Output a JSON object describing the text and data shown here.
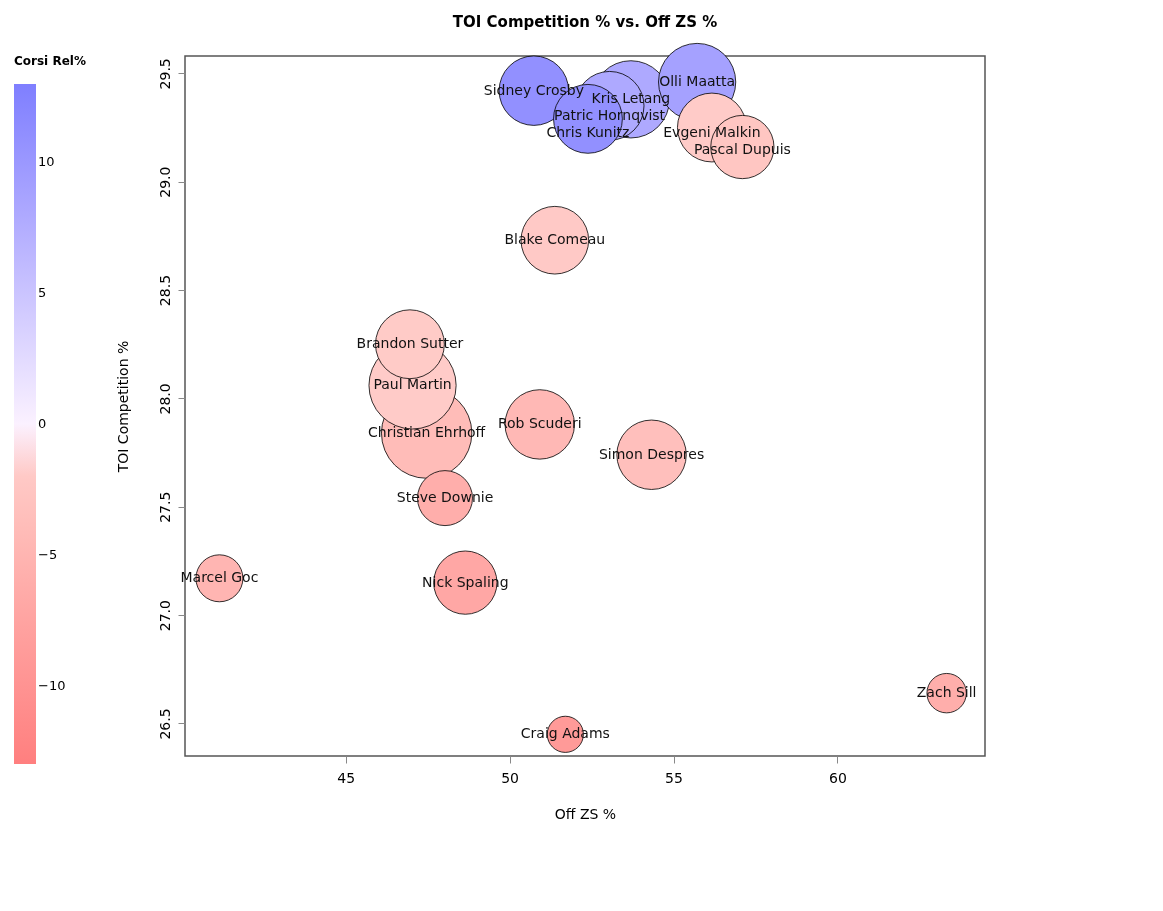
{
  "chart_data": {
    "type": "bubble",
    "title": "TOI Competition % vs. Off ZS %",
    "xlabel": "Off ZS %",
    "ylabel": "TOI Competition %",
    "clabel": "Corsi Rel%",
    "xlim": [
      40.1,
      64.5
    ],
    "xticks": [
      45,
      50,
      55,
      60
    ],
    "ylim": [
      26.35,
      29.58
    ],
    "yticks": [
      26.5,
      {
        "value": 27,
        "label": "27.0"
      },
      27.5,
      {
        "value": 28,
        "label": "28.0"
      },
      28.5,
      {
        "value": 29,
        "label": "29.0"
      },
      29.5
    ],
    "clim": [
      -13,
      13
    ],
    "cticks": [
      -10,
      -5,
      0,
      5,
      10
    ],
    "grid": false,
    "series": [
      {
        "x": [
          50.74,
          53.7,
          55.72,
          53.05,
          52.39,
          56.17,
          57.1,
          51.38,
          46.96,
          47.04,
          47.47,
          50.92,
          54.33,
          48.03,
          41.15,
          48.65,
          51.7,
          63.33
        ],
        "values": [
          29.42,
          29.38,
          29.46,
          29.35,
          29.29,
          29.25,
          29.16,
          28.73,
          28.25,
          28.06,
          27.84,
          27.88,
          27.74,
          27.54,
          27.17,
          27.15,
          26.45,
          26.64
        ],
        "sizes": [
          0.59,
          0.73,
          0.73,
          0.58,
          0.58,
          0.58,
          0.49,
          0.56,
          0.58,
          0.93,
          1,
          0.59,
          0.59,
          0.37,
          0.27,
          0.49,
          0.16,
          0.19
        ],
        "cvalues": [
          11,
          8,
          9,
          8,
          11,
          -1.7,
          -2.5,
          -2,
          -1.8,
          -1.7,
          -4,
          -4.5,
          -3.5,
          -6,
          -5,
          -7,
          -9,
          -6
        ]
      }
    ],
    "annotations": [
      {
        "text": "Sidney Crosby",
        "x": 50.74,
        "y": 29.42
      },
      {
        "text": "Kris Letang",
        "x": 53.7,
        "y": 29.38
      },
      {
        "text": "Olli Maatta",
        "x": 55.72,
        "y": 29.46
      },
      {
        "text": "Patric Hornqvist",
        "x": 53.05,
        "y": 29.35
      },
      {
        "text": "Chris Kunitz",
        "x": 52.39,
        "y": 29.29
      },
      {
        "text": "Evgeni Malkin",
        "x": 56.17,
        "y": 29.25
      },
      {
        "text": "Pascal Dupuis",
        "x": 57.1,
        "y": 29.16
      },
      {
        "text": "Blake Comeau",
        "x": 51.38,
        "y": 28.73
      },
      {
        "text": "Brandon Sutter",
        "x": 46.96,
        "y": 28.25
      },
      {
        "text": "Paul Martin",
        "x": 47.04,
        "y": 28.06
      },
      {
        "text": "Christian Ehrhoff",
        "x": 47.47,
        "y": 27.84
      },
      {
        "text": "Rob Scuderi",
        "x": 50.92,
        "y": 27.88
      },
      {
        "text": "Simon Despres",
        "x": 54.33,
        "y": 27.74
      },
      {
        "text": "Steve Downie",
        "x": 48.03,
        "y": 27.54
      },
      {
        "text": "Marcel Goc",
        "x": 41.15,
        "y": 27.17
      },
      {
        "text": "Nick Spaling",
        "x": 48.65,
        "y": 27.15
      },
      {
        "text": "Craig Adams",
        "x": 51.7,
        "y": 26.45
      },
      {
        "text": "Zach Sill",
        "x": 63.33,
        "y": 26.64
      }
    ]
  }
}
